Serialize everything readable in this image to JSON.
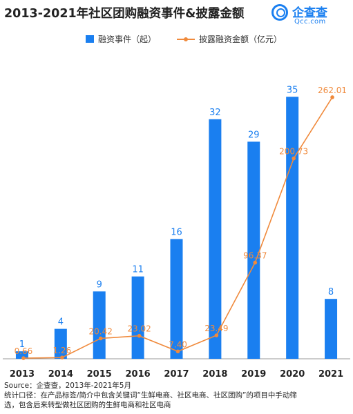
{
  "title": "2013-2021年社区团购融资事件&披露金额",
  "logo": {
    "name_cn": "企查查",
    "name_en": "Qcc.com"
  },
  "chart_data": {
    "type": "bar",
    "categories": [
      "2013",
      "2014",
      "2015",
      "2016",
      "2017",
      "2018",
      "2019",
      "2020",
      "2021"
    ],
    "series": [
      {
        "name": "融资事件（起）",
        "type": "bar",
        "color": "#1a7ff0",
        "axis": "left",
        "values": [
          1,
          4,
          9,
          11,
          16,
          32,
          29,
          35,
          8
        ],
        "labels": [
          "1",
          "4",
          "9",
          "11",
          "16",
          "32",
          "29",
          "35",
          "8"
        ]
      },
      {
        "name": "披露融资金额（亿元）",
        "type": "line",
        "color": "#f08a3c",
        "axis": "right",
        "values": [
          0.66,
          1.26,
          20.42,
          23.02,
          7.4,
          23.49,
          96.37,
          200.73,
          262.01
        ],
        "labels": [
          "0.66",
          "1.26",
          "20.42",
          "23.02",
          "7.40",
          "23.49",
          "96.37",
          "200.73",
          "262.01"
        ]
      }
    ],
    "ylim_left": [
      0,
      40
    ],
    "ylim_right": [
      0,
      300
    ],
    "legend_position": "top"
  },
  "footer": {
    "source": "Source：企查查，2013年-2021年5月",
    "note_line1": "统计口径：在产品标签/简介中包含关键词“生鲜电商、社区电商、社区团购”的项目中手动筛",
    "note_line2": "选，包含后来转型做社区团购的生鲜电商和社区电商"
  }
}
